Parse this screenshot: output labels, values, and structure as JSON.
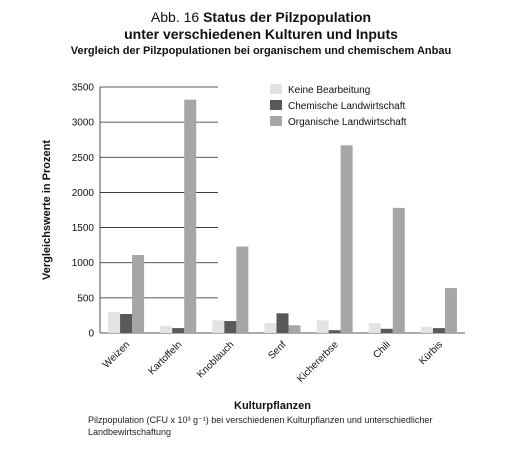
{
  "figure": {
    "fig_label": "Abb. 16",
    "title_main": "Status der Pilzpopulation",
    "title_line2": "unter verschiedenen Kulturen und Inputs",
    "subtitle": "Vergleich der Pilzpopulationen bei organischem und chemischem Anbau",
    "caption": "Pilzpopulation (CFU x 10³ g⁻¹) bei verschiedenen Kulturpflanzen und unterschiedlicher Landbewirtschaftung"
  },
  "chart_data": {
    "type": "bar",
    "categories": [
      "Weizen",
      "Kartoffeln",
      "Knoblauch",
      "Senf",
      "Kichererbse",
      "Chili",
      "Kürbis"
    ],
    "series": [
      {
        "name": "Keine Bearbeitung",
        "color": "#e3e3e3",
        "values": [
          300,
          100,
          180,
          140,
          180,
          140,
          90
        ]
      },
      {
        "name": "Chemische Landwirtschaft",
        "color": "#595959",
        "values": [
          270,
          70,
          170,
          280,
          40,
          60,
          70
        ]
      },
      {
        "name": "Organische Landwirtschaft",
        "color": "#a6a6a6",
        "values": [
          1110,
          3320,
          1230,
          110,
          2670,
          1780,
          640
        ]
      }
    ],
    "xlabel": "Kulturpflanzen",
    "ylabel": "Vergleichswerte in Prozent",
    "ylim": [
      0,
      3500
    ],
    "yticks": [
      0,
      500,
      1000,
      1500,
      2000,
      2500,
      3000,
      3500
    ],
    "grid": true,
    "legend_position": "top-right"
  }
}
